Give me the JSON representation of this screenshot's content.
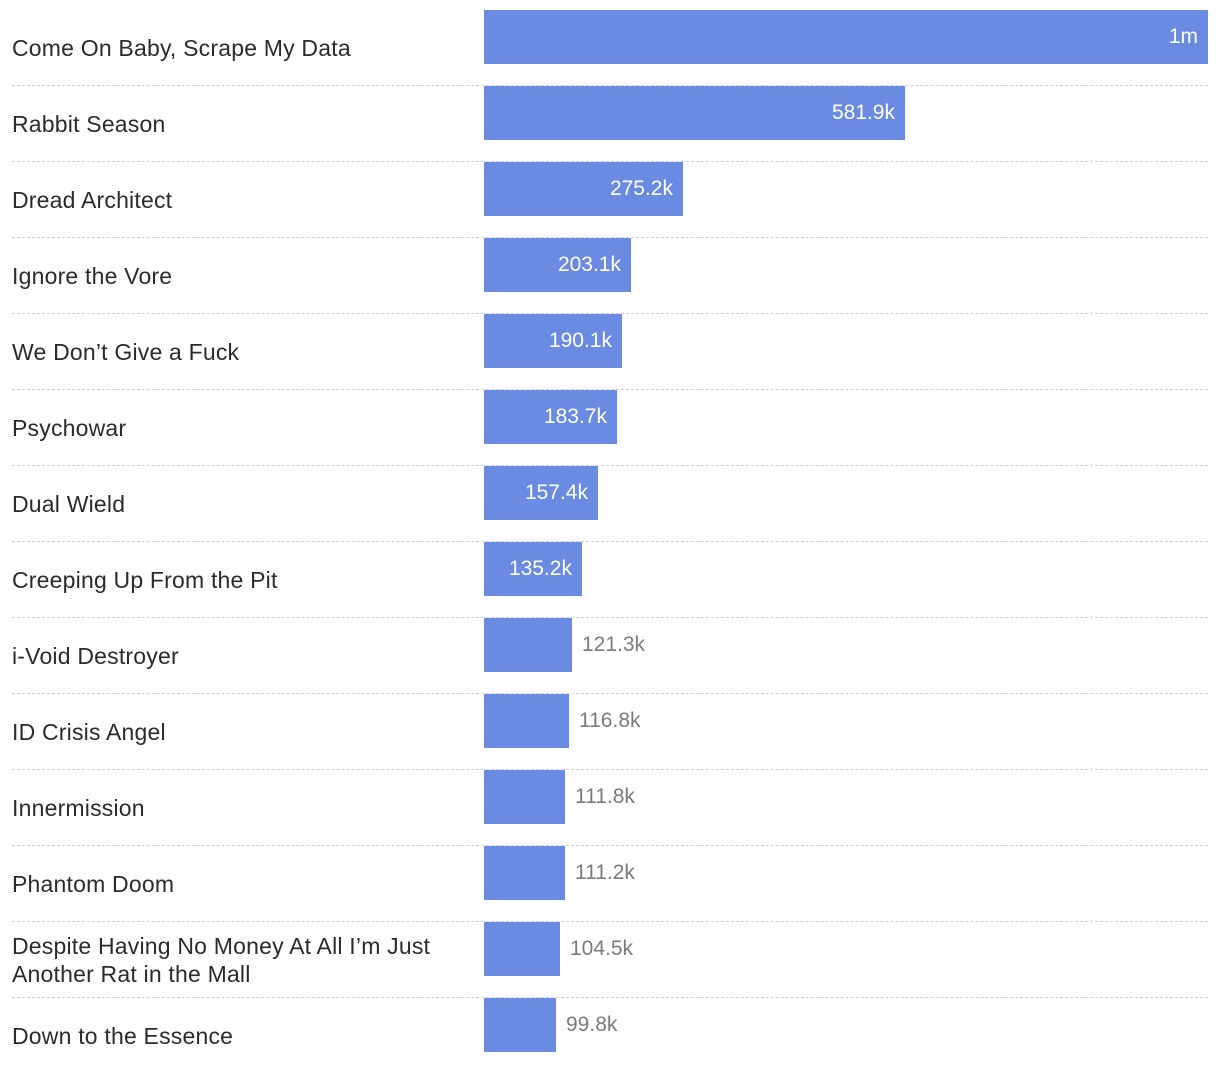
{
  "chart_data": {
    "type": "bar",
    "orientation": "horizontal",
    "categories": [
      "Come On Baby, Scrape My Data",
      "Rabbit Season",
      "Dread Architect",
      "Ignore the Vore",
      "We Don’t Give a Fuck",
      "Psychowar",
      "Dual Wield",
      "Creeping Up From the Pit",
      "i-Void Destroyer",
      "ID Crisis Angel",
      "Innermission",
      "Phantom Doom",
      "Despite Having No Money At All I’m Just Another Rat in the Mall",
      "Down to the Essence"
    ],
    "values": [
      1000000,
      581900,
      275200,
      203100,
      190100,
      183700,
      157400,
      135200,
      121300,
      116800,
      111800,
      111200,
      104500,
      99800
    ],
    "value_labels": [
      "1m",
      "581.9k",
      "275.2k",
      "203.1k",
      "190.1k",
      "183.7k",
      "157.4k",
      "135.2k",
      "121.3k",
      "116.8k",
      "111.8k",
      "111.2k",
      "104.5k",
      "99.8k"
    ],
    "xlim": [
      0,
      1000000
    ],
    "grid": false,
    "bar_color": "#6b8be3"
  }
}
